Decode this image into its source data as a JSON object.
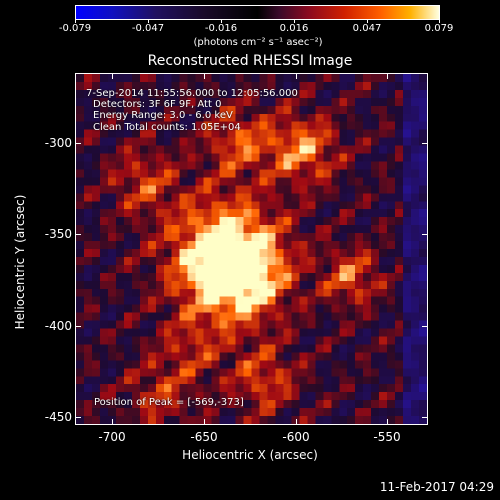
{
  "colorbar": {
    "tick_labels": [
      "-0.079",
      "-0.047",
      "-0.016",
      "0.016",
      "0.047",
      "0.079"
    ],
    "unit_label": "(photons cm⁻² s⁻¹ asec⁻²)"
  },
  "plot": {
    "title": "Reconstructed RHESSI Image",
    "annotations": {
      "time_range": "7-Sep-2014 11:55:56.000 to 12:05:56.000",
      "detectors": "Detectors: 3F 6F 9F, Att 0",
      "energy_range": "Energy Range: 3.0 - 6.0 keV",
      "method_counts": "Clean    Total counts: 1.05E+04",
      "peak_position": "Position of Peak = [-569,-373]"
    },
    "x_axis": {
      "label": "Heliocentric X (arcsec)",
      "ticks": [
        "-700",
        "-650",
        "-600",
        "-550"
      ],
      "range": [
        -720,
        -528
      ]
    },
    "y_axis": {
      "label": "Heliocentric Y (arcsec)",
      "ticks": [
        "-300",
        "-350",
        "-400",
        "-450"
      ],
      "range": [
        -455,
        -263
      ]
    }
  },
  "footer": {
    "timestamp": "11-Feb-2017 04:29"
  },
  "colors": {
    "background": "#000000",
    "foreground": "#ffffff"
  }
}
